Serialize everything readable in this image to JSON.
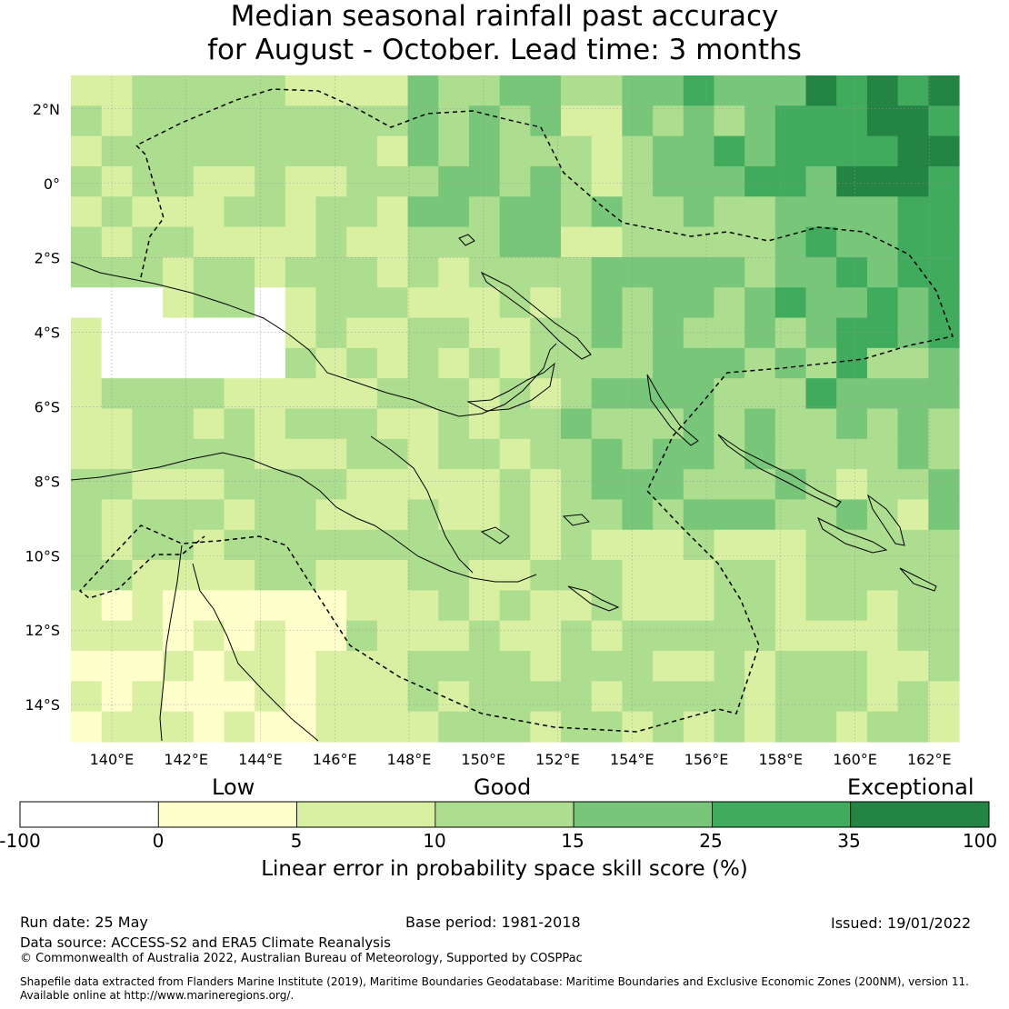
{
  "title": {
    "line1": "Median seasonal rainfall past accuracy",
    "line2": "for August - October. Lead time: 3 months"
  },
  "axes": {
    "lon_ticks": [
      "140°E",
      "142°E",
      "144°E",
      "146°E",
      "148°E",
      "150°E",
      "152°E",
      "154°E",
      "156°E",
      "158°E",
      "160°E",
      "162°E"
    ],
    "lon_values": [
      140,
      142,
      144,
      146,
      148,
      150,
      152,
      154,
      156,
      158,
      160,
      162
    ],
    "lat_ticks": [
      "2°N",
      "0°",
      "2°S",
      "4°S",
      "6°S",
      "8°S",
      "10°S",
      "12°S",
      "14°S"
    ],
    "lat_values": [
      2,
      0,
      -2,
      -4,
      -6,
      -8,
      -10,
      -12,
      -14
    ],
    "lon_range": [
      138.9,
      162.8
    ],
    "lat_range": [
      -15.0,
      2.9
    ],
    "grid": true
  },
  "colorbar": {
    "categories": [
      "Low",
      "Good",
      "Exceptional"
    ],
    "ticks": [
      "-100",
      "0",
      "5",
      "10",
      "15",
      "25",
      "35",
      "100"
    ],
    "colors": [
      "#ffffff",
      "#ffffcc",
      "#d9f0a3",
      "#addd8e",
      "#78c679",
      "#41ab5d",
      "#238443"
    ],
    "label": "Linear error in probability space skill score (%)"
  },
  "footer": {
    "run_date": "Run date: 25 May",
    "base_period": "Base period: 1981-2018",
    "issued": "Issued: 19/01/2022",
    "data_source": "Data source: ACCESS-S2 and ERA5 Climate Reanalysis",
    "copyright": "© Commonwealth of Australia 2022, Australian Bureau of Meteorology, Supported by COSPPac",
    "shapefile_line1": "Shapefile data extracted from Flanders Marine Institute (2019), Maritime Boundaries Geodatabase: Maritime Boundaries and Exclusive Economic Zones (200NM), version 11.",
    "shapefile_line2": "Available online at http://www.marineregions.org/."
  }
}
